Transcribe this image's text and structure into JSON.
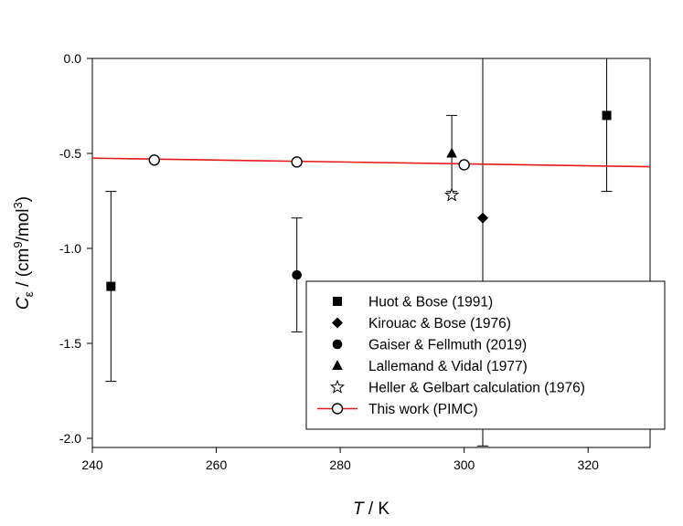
{
  "chart_data": {
    "type": "scatter",
    "xlabel": {
      "symbol": "T",
      "rest": " / K"
    },
    "ylabel": {
      "symbol": "C",
      "sub": "ε",
      "mid": " / (cm",
      "sup1": "9",
      "mid2": "/mol",
      "sup2": "3",
      "end": ")"
    },
    "xlim": [
      240,
      330
    ],
    "ylim": [
      -2.05,
      0
    ],
    "xticks": [
      240,
      260,
      280,
      300,
      320
    ],
    "yticks": [
      0,
      -0.5,
      -1,
      -1.5,
      -2
    ],
    "xtick_labels": [
      "240",
      "260",
      "280",
      "300",
      "320"
    ],
    "ytick_labels": [
      "0.0",
      "-0.5",
      "-1.0",
      "-1.5",
      "-2.0"
    ],
    "grid": false,
    "legend_position": "bottom-right",
    "series": [
      {
        "name": "Huot & Bose (1991)",
        "marker": "square",
        "color": "#000000",
        "points": [
          {
            "x": 243,
            "y": -1.2,
            "ylow": -1.7,
            "yhigh": -0.7
          },
          {
            "x": 323,
            "y": -0.3,
            "ylow": -0.7,
            "yhigh": 0.1
          }
        ]
      },
      {
        "name": "Kirouac & Bose (1976)",
        "marker": "diamond",
        "color": "#000000",
        "points": [
          {
            "x": 303,
            "y": -0.84,
            "ylow": -2.04,
            "yhigh": 0.36
          }
        ]
      },
      {
        "name": "Gaiser & Fellmuth (2019)",
        "marker": "circle",
        "color": "#000000",
        "points": [
          {
            "x": 273,
            "y": -1.14,
            "ylow": -1.44,
            "yhigh": -0.84
          }
        ]
      },
      {
        "name": "Lallemand & Vidal (1977)",
        "marker": "triangle",
        "color": "#000000",
        "points": [
          {
            "x": 298,
            "y": -0.5,
            "ylow": -0.7,
            "yhigh": -0.3
          }
        ]
      },
      {
        "name": "Heller & Gelbart calculation (1976)",
        "marker": "star-open",
        "color": "#000000",
        "points": [
          {
            "x": 298,
            "y": -0.72
          }
        ]
      },
      {
        "name": "This work (PIMC)",
        "marker": "circle-open",
        "color": "#000000",
        "line_color": "#e31a1c",
        "points": [
          {
            "x": 250,
            "y": -0.535
          },
          {
            "x": 273,
            "y": -0.545
          },
          {
            "x": 300,
            "y": -0.56
          }
        ],
        "line": [
          {
            "x": 240,
            "y": -0.525
          },
          {
            "x": 330,
            "y": -0.57
          }
        ]
      }
    ]
  }
}
